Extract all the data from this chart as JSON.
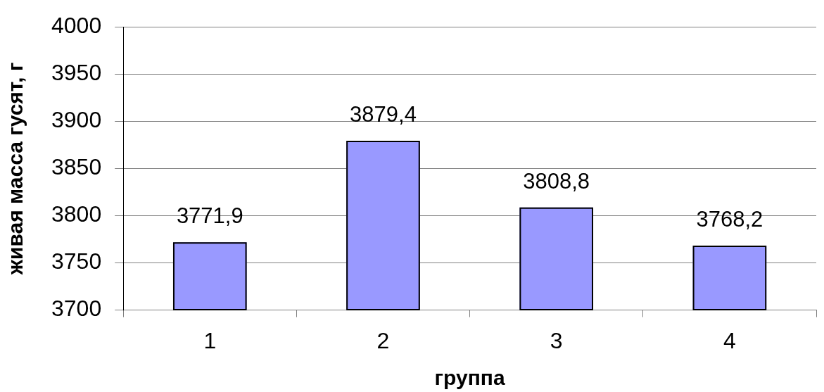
{
  "chart_data": {
    "type": "bar",
    "xlabel": "группа",
    "ylabel": "живая масса гусят, г",
    "categories": [
      "1",
      "2",
      "3",
      "4"
    ],
    "values": [
      3771.9,
      3879.4,
      3808.8,
      3768.2
    ],
    "value_labels": [
      "3771,9",
      "3879,4",
      "3808,8",
      "3768,2"
    ],
    "color": "#9999ff",
    "ylim": [
      3700,
      4000
    ],
    "yticks": [
      3700,
      3750,
      3800,
      3850,
      3900,
      3950,
      4000
    ],
    "grid": "y"
  }
}
